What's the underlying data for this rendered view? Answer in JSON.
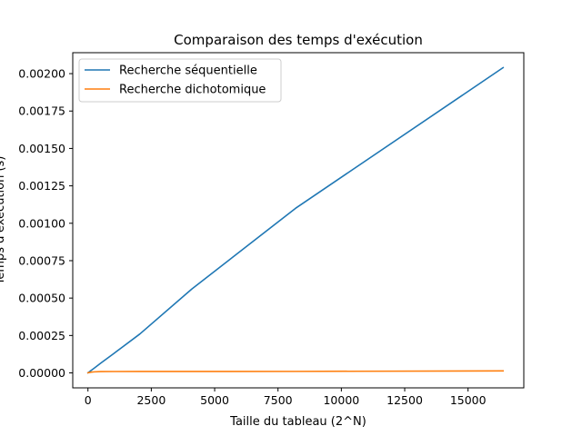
{
  "chart_data": {
    "type": "line",
    "title": "Comparaison des temps d'exécution",
    "xlabel": "Taille du tableau (2^N)",
    "ylabel": "Temps d'exécution (s)",
    "xlim": [
      -600,
      17200
    ],
    "ylim": [
      -0.0001,
      0.00214
    ],
    "xticks": [
      0,
      2500,
      5000,
      7500,
      10000,
      12500,
      15000
    ],
    "xtick_labels": [
      "0",
      "2500",
      "5000",
      "7500",
      "10000",
      "12500",
      "15000"
    ],
    "yticks": [
      0.0,
      0.00025,
      0.0005,
      0.00075,
      0.001,
      0.00125,
      0.0015,
      0.00175,
      0.002
    ],
    "ytick_labels": [
      "0.00000",
      "0.00025",
      "0.00050",
      "0.00075",
      "0.00100",
      "0.00125",
      "0.00150",
      "0.00175",
      "0.00200"
    ],
    "grid": false,
    "legend_position": "top-left",
    "series": [
      {
        "name": "Recherche séquentielle",
        "color": "#1f77b4",
        "x": [
          1,
          2,
          4,
          8,
          16,
          32,
          64,
          128,
          256,
          512,
          1024,
          2048,
          4096,
          8192,
          16384
        ],
        "y": [
          8e-07,
          9e-07,
          1.1e-06,
          1.6e-06,
          2.5e-06,
          4.5e-06,
          8.5e-06,
          1.7e-05,
          3.3e-05,
          6.6e-05,
          0.00013,
          0.00026,
          0.00056,
          0.0011,
          0.00204
        ]
      },
      {
        "name": "Recherche dichotomique",
        "color": "#ff7f0e",
        "x": [
          1,
          2,
          4,
          8,
          16,
          32,
          64,
          128,
          256,
          512,
          1024,
          2048,
          4096,
          8192,
          16384
        ],
        "y": [
          8e-07,
          1e-06,
          1.2e-06,
          1.4e-06,
          1.6e-06,
          2e-06,
          3e-06,
          5e-06,
          7e-06,
          9e-06,
          9.2e-06,
          9.5e-06,
          9.8e-06,
          1e-05,
          1.35e-05
        ]
      }
    ]
  }
}
